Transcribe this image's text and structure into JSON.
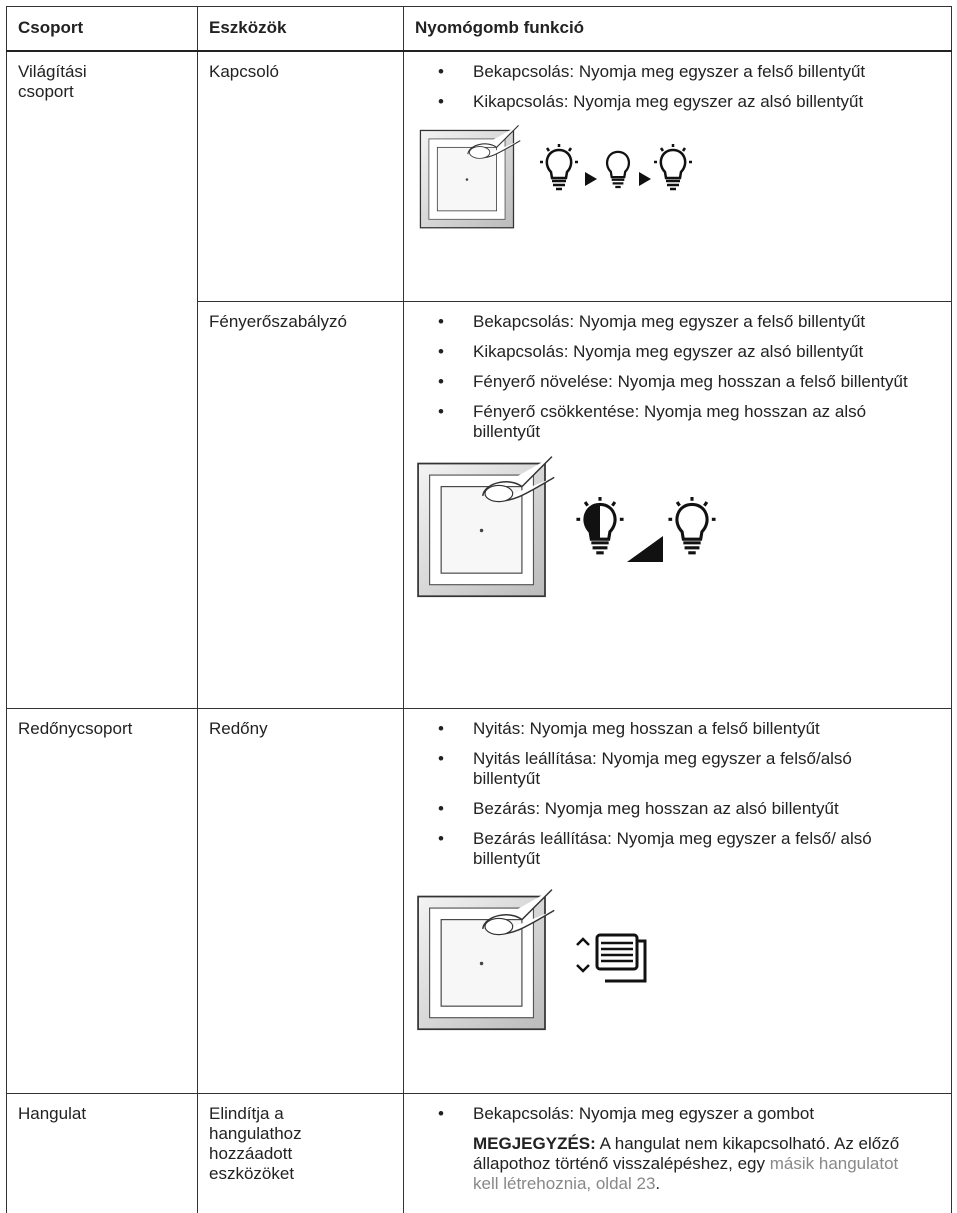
{
  "table": {
    "headers": [
      "Csoport",
      "Eszközök",
      "Nyomógomb funkció"
    ],
    "rows": [
      {
        "group": "Világítási csoport",
        "device": "Kapcsoló",
        "functions": [
          "Bekapcsolás: Nyomja meg egyszer a felső billentyűt",
          "Kikapcsolás: Nyomja meg egyszer az alsó billentyűt"
        ]
      },
      {
        "device": "Fényerőszabályzó",
        "functions": [
          "Bekapcsolás: Nyomja meg egyszer a felső billentyűt",
          "Kikapcsolás: Nyomja meg egyszer az alsó billentyűt",
          "Fényerő növelése: Nyomja meg hosszan a felső billentyűt",
          "Fényerő csökkentése: Nyomja meg hosszan az alsó billentyűt"
        ]
      },
      {
        "group": "Redőnycsoport",
        "device": "Redőny",
        "functions": [
          "Nyitás: Nyomja meg hosszan a felső billentyűt",
          "Nyitás leállítása: Nyomja meg egyszer a felső/alsó billentyűt",
          "Bezárás: Nyomja meg hosszan az alsó billentyűt",
          "Bezárás leállítása: Nyomja meg egyszer a felső/ alsó billentyűt"
        ]
      },
      {
        "group": "Hangulat",
        "device": "Elindítja a hangulathoz hozzáadott eszközöket",
        "functions": [
          "Bekapcsolás: Nyomja meg egyszer a gombot"
        ],
        "note": {
          "label": "MEGJEGYZÉS:",
          "text": "A hangulat nem kikapcsolható. Az előző állapothoz történő visszalépéshez, egy",
          "link": "másik hangulatot kell létrehoznia, oldal 23",
          "end": "."
        }
      }
    ]
  }
}
